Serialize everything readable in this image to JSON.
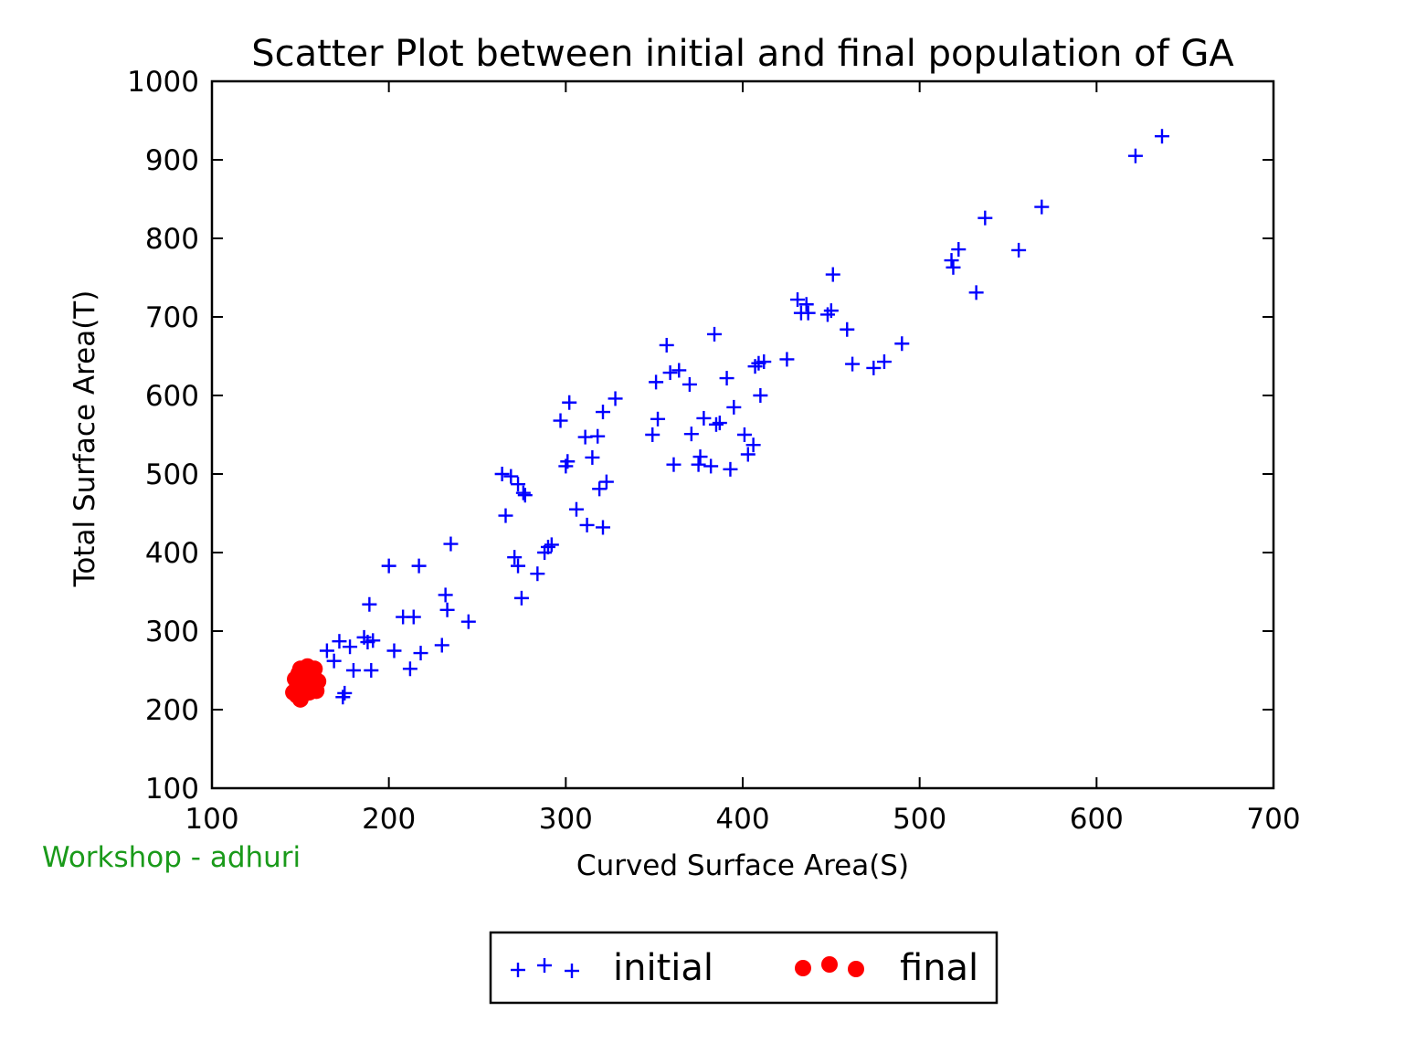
{
  "note": {
    "text": "Workshop - adhuri",
    "color": "#1a9a1a"
  },
  "chart_data": {
    "type": "scatter",
    "title": "Scatter Plot between initial and final population of GA",
    "xlabel": "Curved Surface Area(S)",
    "ylabel": "Total Surface Area(T)",
    "xlim": [
      100,
      700
    ],
    "ylim": [
      100,
      1000
    ],
    "xticks": [
      "100",
      "200",
      "300",
      "400",
      "500",
      "600",
      "700"
    ],
    "yticks": [
      "100",
      "200",
      "300",
      "400",
      "500",
      "600",
      "700",
      "800",
      "900",
      "1000"
    ],
    "grid": false,
    "legend": {
      "placement": "bottom-center-outside"
    },
    "series": [
      {
        "name": "initial",
        "marker": "plus",
        "color": "#0000ff",
        "points": [
          [
            165,
            275
          ],
          [
            169,
            262
          ],
          [
            172,
            287
          ],
          [
            174,
            216
          ],
          [
            175,
            221
          ],
          [
            178,
            280
          ],
          [
            180,
            250
          ],
          [
            186,
            292
          ],
          [
            188,
            286
          ],
          [
            189,
            334
          ],
          [
            190,
            250
          ],
          [
            191,
            288
          ],
          [
            200,
            383
          ],
          [
            203,
            275
          ],
          [
            208,
            318
          ],
          [
            212,
            252
          ],
          [
            214,
            318
          ],
          [
            217,
            383
          ],
          [
            218,
            272
          ],
          [
            230,
            282
          ],
          [
            232,
            346
          ],
          [
            233,
            327
          ],
          [
            235,
            411
          ],
          [
            245,
            312
          ],
          [
            264,
            500
          ],
          [
            266,
            447
          ],
          [
            269,
            497
          ],
          [
            271,
            394
          ],
          [
            273,
            383
          ],
          [
            273,
            487
          ],
          [
            275,
            342
          ],
          [
            276,
            476
          ],
          [
            277,
            473
          ],
          [
            284,
            373
          ],
          [
            288,
            400
          ],
          [
            290,
            407
          ],
          [
            292,
            410
          ],
          [
            297,
            568
          ],
          [
            300,
            510
          ],
          [
            301,
            516
          ],
          [
            302,
            591
          ],
          [
            306,
            455
          ],
          [
            311,
            547
          ],
          [
            312,
            435
          ],
          [
            315,
            521
          ],
          [
            318,
            548
          ],
          [
            319,
            481
          ],
          [
            321,
            579
          ],
          [
            321,
            432
          ],
          [
            323,
            490
          ],
          [
            328,
            596
          ],
          [
            349,
            550
          ],
          [
            351,
            617
          ],
          [
            352,
            570
          ],
          [
            357,
            664
          ],
          [
            359,
            629
          ],
          [
            361,
            512
          ],
          [
            364,
            632
          ],
          [
            370,
            614
          ],
          [
            371,
            551
          ],
          [
            375,
            512
          ],
          [
            376,
            522
          ],
          [
            378,
            571
          ],
          [
            382,
            510
          ],
          [
            384,
            678
          ],
          [
            385,
            563
          ],
          [
            387,
            565
          ],
          [
            391,
            622
          ],
          [
            393,
            506
          ],
          [
            395,
            585
          ],
          [
            401,
            550
          ],
          [
            403,
            525
          ],
          [
            406,
            537
          ],
          [
            407,
            637
          ],
          [
            409,
            641
          ],
          [
            410,
            600
          ],
          [
            412,
            643
          ],
          [
            425,
            646
          ],
          [
            431,
            722
          ],
          [
            433,
            705
          ],
          [
            436,
            716
          ],
          [
            437,
            705
          ],
          [
            448,
            703
          ],
          [
            450,
            708
          ],
          [
            451,
            754
          ],
          [
            459,
            684
          ],
          [
            462,
            640
          ],
          [
            474,
            635
          ],
          [
            480,
            643
          ],
          [
            490,
            666
          ],
          [
            518,
            772
          ],
          [
            519,
            763
          ],
          [
            522,
            786
          ],
          [
            532,
            731
          ],
          [
            537,
            826
          ],
          [
            556,
            785
          ],
          [
            569,
            840
          ],
          [
            622,
            905
          ],
          [
            637,
            930
          ]
        ]
      },
      {
        "name": "final",
        "marker": "circle",
        "color": "#ff0000",
        "points": [
          [
            146,
            222
          ],
          [
            147,
            239
          ],
          [
            148,
            218
          ],
          [
            149,
            236
          ],
          [
            150,
            213
          ],
          [
            151,
            242
          ],
          [
            150,
            252
          ],
          [
            152,
            227
          ],
          [
            153,
            222
          ],
          [
            153,
            245
          ],
          [
            154,
            255
          ],
          [
            155,
            233
          ],
          [
            156,
            248
          ],
          [
            157,
            227
          ],
          [
            158,
            240
          ],
          [
            158,
            252
          ],
          [
            159,
            224
          ],
          [
            160,
            236
          ],
          [
            149,
            246
          ],
          [
            152,
            250
          ],
          [
            155,
            222
          ],
          [
            157,
            244
          ],
          [
            151,
            218
          ],
          [
            148,
            228
          ]
        ]
      }
    ]
  }
}
